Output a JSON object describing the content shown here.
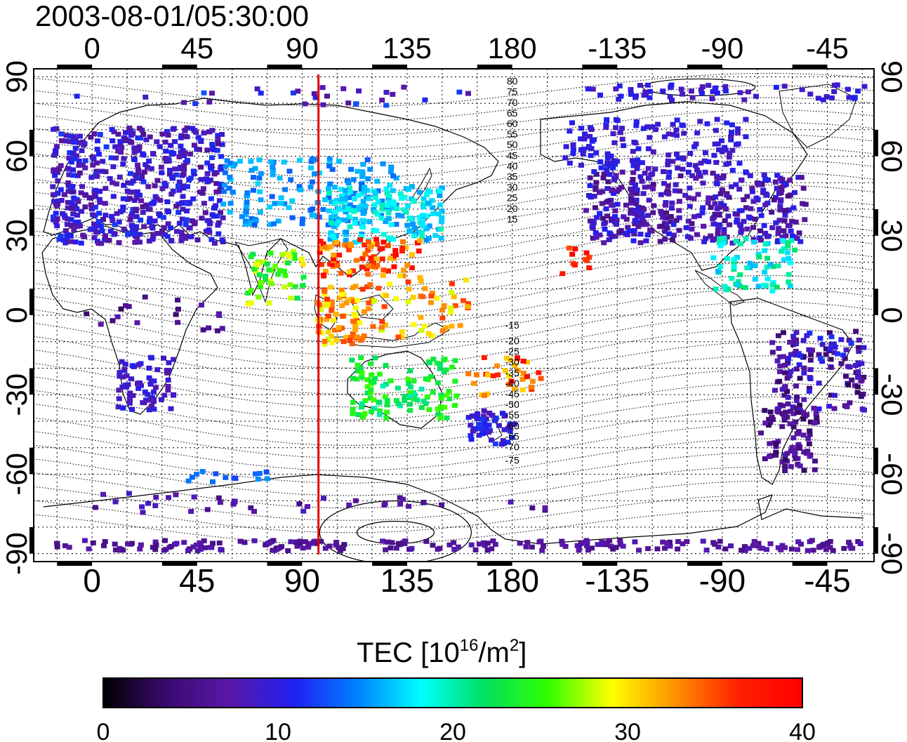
{
  "timestamp": "2003-08-01/05:30:00",
  "map": {
    "lon_labels": [
      "0",
      "45",
      "90",
      "135",
      "180",
      "-135",
      "-90",
      "-45"
    ],
    "lon_values": [
      0,
      45,
      90,
      135,
      180,
      225,
      270,
      315
    ],
    "lat_labels": [
      "90",
      "60",
      "30",
      "0",
      "-30",
      "-60",
      "-90"
    ],
    "lat_values": [
      90,
      60,
      30,
      0,
      -30,
      -60,
      -90
    ],
    "lon_range": [
      -25,
      335
    ],
    "lat_range": [
      -93,
      93
    ],
    "grid": true,
    "marker_line_lon": 97,
    "marker_line_color": "#e00000",
    "contour_labels": [
      "80",
      "75",
      "70",
      "65",
      "60",
      "55",
      "50",
      "45",
      "40",
      "35",
      "30",
      "25",
      "20",
      "15",
      "-15",
      "-20",
      "-25",
      "-30",
      "-35",
      "-40",
      "-45",
      "-50",
      "-55",
      "-60",
      "-65",
      "-70",
      "-75"
    ]
  },
  "colorbar": {
    "title_prefix": "TEC  [10",
    "title_exp1": "16",
    "title_mid": "/m",
    "title_exp2": "2",
    "title_suffix": "]",
    "tick_labels": [
      "0",
      "10",
      "20",
      "30",
      "40"
    ],
    "range": [
      0,
      40
    ],
    "colors": [
      "#000000",
      "#3a0a6e",
      "#5a18a8",
      "#2020f0",
      "#0080ff",
      "#00ffff",
      "#00e060",
      "#30ff00",
      "#ffff00",
      "#ff9000",
      "#ff2000",
      "#ff0000"
    ]
  }
}
